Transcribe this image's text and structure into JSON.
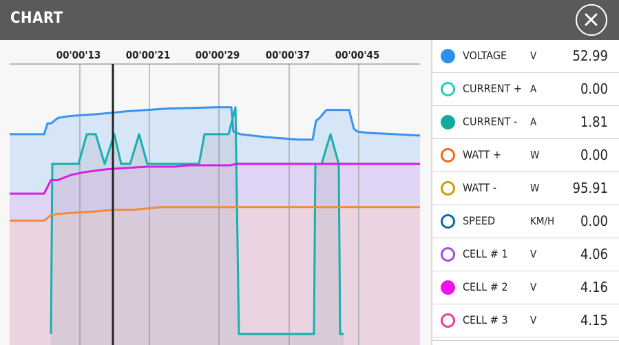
{
  "header": {
    "title": "CHART"
  },
  "legend": {
    "items": [
      {
        "name": "VOLTAGE",
        "unit": "V",
        "value": "52.99",
        "color": "#2f8ff0",
        "filled": true
      },
      {
        "name": "CURRENT +",
        "unit": "A",
        "value": "0.00",
        "color": "#1fd0bd",
        "filled": false
      },
      {
        "name": "CURRENT -",
        "unit": "A",
        "value": "1.81",
        "color": "#12a99e",
        "filled": true
      },
      {
        "name": "WATT +",
        "unit": "W",
        "value": "0.00",
        "color": "#f06a1e",
        "filled": false
      },
      {
        "name": "WATT -",
        "unit": "W",
        "value": "95.91",
        "color": "#c8a000",
        "filled": false
      },
      {
        "name": "SPEED",
        "unit": "KM/H",
        "value": "0.00",
        "color": "#0b6aa8",
        "filled": false
      },
      {
        "name": "CELL # 1",
        "unit": "V",
        "value": "4.06",
        "color": "#a24ce0",
        "filled": false
      },
      {
        "name": "CELL # 2",
        "unit": "V",
        "value": "4.16",
        "color": "#ee12ee",
        "filled": true
      },
      {
        "name": "CELL # 3",
        "unit": "V",
        "value": "4.15",
        "color": "#ee3c8e",
        "filled": false
      }
    ]
  },
  "chart_data": {
    "type": "line",
    "x_ticks": [
      "00'00'13",
      "00'00'21",
      "00'00'29",
      "00'00'37",
      "00'00'45"
    ],
    "cursor_at": "00'00'17",
    "series": [
      {
        "name": "VOLTAGE",
        "color": "#3a92ec",
        "fill": "#d6e6f6",
        "points": [
          [
            0,
            0.74
          ],
          [
            50,
            0.74
          ],
          [
            55,
            0.78
          ],
          [
            60,
            0.78
          ],
          [
            70,
            0.8
          ],
          [
            80,
            0.805
          ],
          [
            100,
            0.81
          ],
          [
            130,
            0.815
          ],
          [
            150,
            0.82
          ],
          [
            170,
            0.825
          ],
          [
            200,
            0.83
          ],
          [
            230,
            0.835
          ],
          [
            260,
            0.837
          ],
          [
            300,
            0.84
          ],
          [
            322,
            0.84
          ],
          [
            325,
            0.75
          ],
          [
            335,
            0.74
          ],
          [
            370,
            0.73
          ],
          [
            420,
            0.72
          ],
          [
            440,
            0.72
          ],
          [
            445,
            0.79
          ],
          [
            450,
            0.8
          ],
          [
            460,
            0.83
          ],
          [
            493,
            0.83
          ],
          [
            500,
            0.76
          ],
          [
            505,
            0.75
          ],
          [
            520,
            0.745
          ],
          [
            560,
            0.74
          ],
          [
            596,
            0.735
          ]
        ]
      },
      {
        "name": "CURRENT -",
        "color": "#16b0ae",
        "fill": "none",
        "points": [
          [
            60,
            0
          ],
          [
            62,
            0.63
          ],
          [
            100,
            0.63
          ],
          [
            112,
            0.74
          ],
          [
            125,
            0.74
          ],
          [
            138,
            0.63
          ],
          [
            152,
            0.74
          ],
          [
            162,
            0.63
          ],
          [
            175,
            0.63
          ],
          [
            188,
            0.74
          ],
          [
            200,
            0.63
          ],
          [
            275,
            0.63
          ],
          [
            283,
            0.74
          ],
          [
            318,
            0.74
          ],
          [
            328,
            0.84
          ],
          [
            333,
            0
          ],
          [
            442,
            0
          ],
          [
            444,
            0.63
          ],
          [
            453,
            0.63
          ],
          [
            466,
            0.74
          ],
          [
            478,
            0.63
          ],
          [
            480,
            0
          ],
          [
            485,
            0
          ]
        ]
      },
      {
        "name": "CELL # 2",
        "color": "#d61fe2",
        "fill": "#e0d4f4",
        "points": [
          [
            0,
            0.52
          ],
          [
            50,
            0.52
          ],
          [
            60,
            0.57
          ],
          [
            70,
            0.57
          ],
          [
            90,
            0.59
          ],
          [
            110,
            0.6
          ],
          [
            140,
            0.61
          ],
          [
            170,
            0.615
          ],
          [
            200,
            0.62
          ],
          [
            240,
            0.62
          ],
          [
            260,
            0.625
          ],
          [
            320,
            0.625
          ],
          [
            330,
            0.63
          ],
          [
            596,
            0.63
          ]
        ]
      },
      {
        "name": "WATT +",
        "color": "#ee8a40",
        "fill": "#ead4e2",
        "points": [
          [
            0,
            0.42
          ],
          [
            50,
            0.42
          ],
          [
            60,
            0.44
          ],
          [
            70,
            0.445
          ],
          [
            100,
            0.45
          ],
          [
            130,
            0.455
          ],
          [
            150,
            0.46
          ],
          [
            180,
            0.46
          ],
          [
            200,
            0.465
          ],
          [
            220,
            0.47
          ],
          [
            320,
            0.47
          ],
          [
            596,
            0.47
          ]
        ]
      }
    ],
    "grid": true
  }
}
